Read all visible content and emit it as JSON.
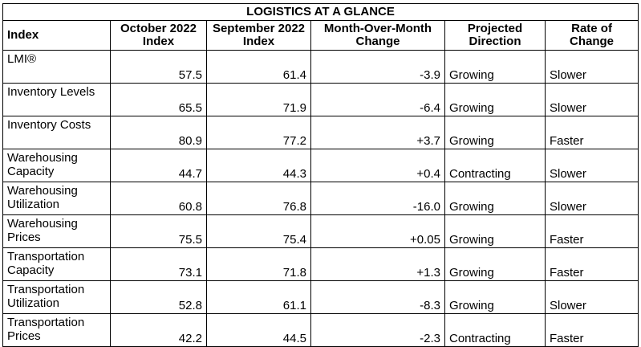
{
  "title": "LOGISTICS AT A GLANCE",
  "columns": [
    "Index",
    "October 2022 Index",
    "September 2022 Index",
    "Month-Over-Month Change",
    "Projected Direction",
    "Rate of Change"
  ],
  "rows": [
    {
      "index": "LMI®",
      "oct": "57.5",
      "sep": "61.4",
      "change": "-3.9",
      "direction": "Growing",
      "rate": "Slower"
    },
    {
      "index": "Inventory Levels",
      "oct": "65.5",
      "sep": "71.9",
      "change": "-6.4",
      "direction": "Growing",
      "rate": "Slower"
    },
    {
      "index": "Inventory Costs",
      "oct": "80.9",
      "sep": "77.2",
      "change": "+3.7",
      "direction": "Growing",
      "rate": "Faster"
    },
    {
      "index": "Warehousing Capacity",
      "oct": "44.7",
      "sep": "44.3",
      "change": "+0.4",
      "direction": "Contracting",
      "rate": "Slower"
    },
    {
      "index": "Warehousing Utilization",
      "oct": "60.8",
      "sep": "76.8",
      "change": "-16.0",
      "direction": "Growing",
      "rate": "Slower"
    },
    {
      "index": "Warehousing Prices",
      "oct": "75.5",
      "sep": "75.4",
      "change": "+0.05",
      "direction": "Growing",
      "rate": "Faster"
    },
    {
      "index": "Transportation Capacity",
      "oct": "73.1",
      "sep": "71.8",
      "change": "+1.3",
      "direction": "Growing",
      "rate": "Faster"
    },
    {
      "index": "Transportation Utilization",
      "oct": "52.8",
      "sep": "61.1",
      "change": "-8.3",
      "direction": "Growing",
      "rate": "Slower"
    },
    {
      "index": "Transportation Prices",
      "oct": "42.2",
      "sep": "44.5",
      "change": "-2.3",
      "direction": "Contracting",
      "rate": "Faster"
    }
  ]
}
